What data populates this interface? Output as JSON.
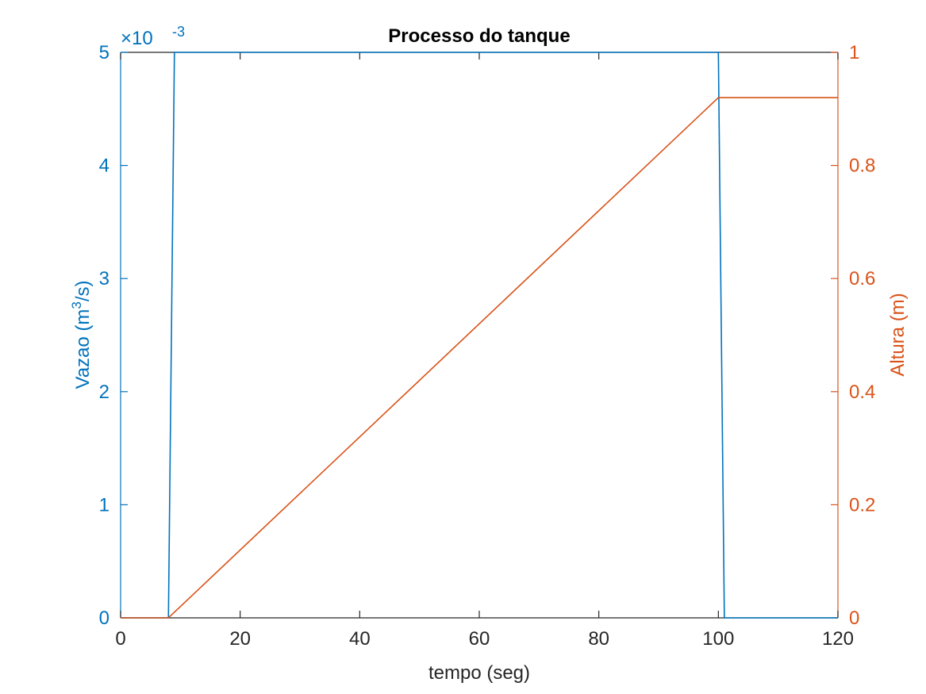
{
  "chart_data": {
    "type": "line",
    "title": "Processo do tanque",
    "xlabel": "tempo (seg)",
    "xlim": [
      0,
      120
    ],
    "xticks": [
      0,
      20,
      40,
      60,
      80,
      100,
      120
    ],
    "y_left": {
      "label_main": "Vazao (m",
      "label_sup": "3",
      "label_end": "/s)",
      "lim": [
        0,
        5
      ],
      "ticks": [
        0,
        1,
        2,
        3,
        4,
        5
      ],
      "exponent_prefix": "×10",
      "exponent": "-3",
      "color": "#0072BD"
    },
    "y_right": {
      "label": "Altura (m)",
      "lim": [
        0,
        1
      ],
      "ticks": [
        "0",
        "0.2",
        "0.4",
        "0.6",
        "0.8",
        "1"
      ],
      "tick_values": [
        0,
        0.2,
        0.4,
        0.6,
        0.8,
        1
      ],
      "color": "#D95319"
    },
    "grid": false,
    "series": [
      {
        "axis": "left",
        "color": "#0072BD",
        "x": [
          0,
          8,
          9,
          100,
          101,
          120
        ],
        "y": [
          0,
          0,
          5,
          5,
          0,
          0
        ]
      },
      {
        "axis": "right",
        "color": "#D95319",
        "x": [
          0,
          8,
          100,
          120
        ],
        "y": [
          0,
          0,
          0.92,
          0.92
        ]
      }
    ]
  }
}
